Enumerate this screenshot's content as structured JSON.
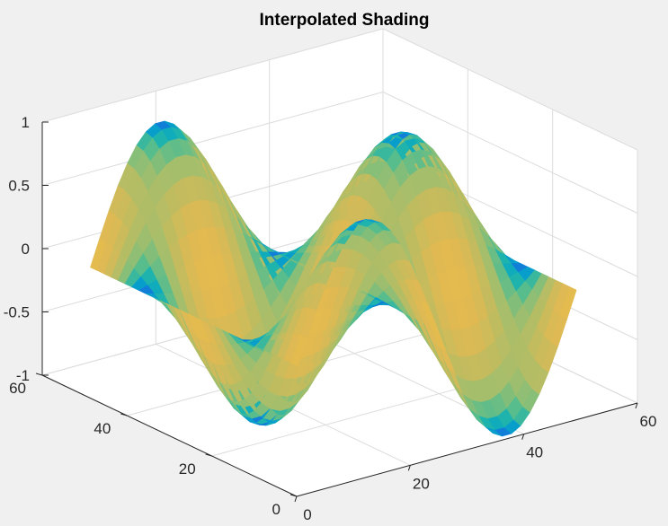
{
  "chart_data": {
    "type": "surface",
    "title": "Interpolated Shading",
    "xlabel": "",
    "ylabel": "",
    "zlabel": "",
    "shading": "interp",
    "colormap": "parula",
    "grid": true,
    "xlim": [
      0,
      60
    ],
    "ylim": [
      0,
      60
    ],
    "zlim": [
      -1,
      1
    ],
    "x_ticks": [
      "0",
      "20",
      "40",
      "60"
    ],
    "y_ticks": [
      "0",
      "20",
      "40",
      "60"
    ],
    "z_ticks": [
      "-1",
      "-0.5",
      "0",
      "0.5",
      "1"
    ],
    "x_range": [
      1,
      50
    ],
    "y_range": [
      1,
      50
    ],
    "function": "z = sin(x) * cos(y) over a 50x50 grid, x and y spanning one full period"
  }
}
